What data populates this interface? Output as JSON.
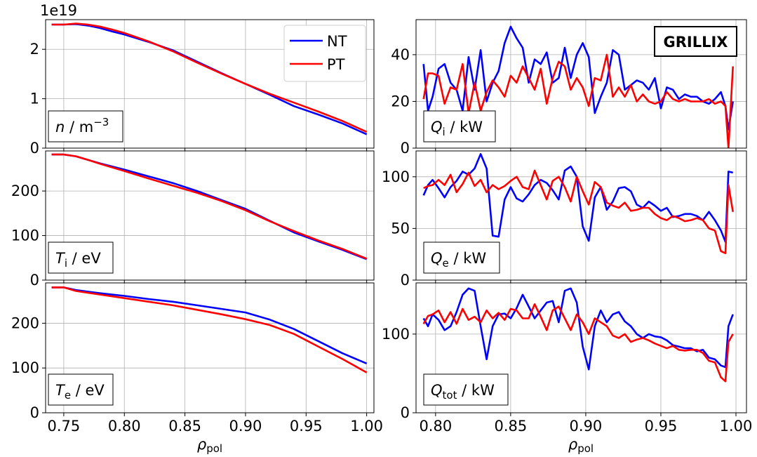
{
  "legend": {
    "entries": [
      {
        "label": "NT",
        "color": "#0000ff"
      },
      {
        "label": "PT",
        "color": "#ff0000"
      }
    ],
    "placement": "upper-right of top-left panel"
  },
  "badge": "GRILLIX",
  "xlabel_left": {
    "main": "ρ",
    "sub": "pol"
  },
  "xlabel_right": {
    "main": "ρ",
    "sub": "pol"
  },
  "chart_data": [
    {
      "type": "line",
      "panel": "n",
      "offset_text": "1e19",
      "label": {
        "var": "n",
        "unit": " / m",
        "sup": "−3"
      },
      "xlim": [
        0.735,
        1.006
      ],
      "ylim": [
        0,
        2.6
      ],
      "xticks": [
        0.75,
        0.8,
        0.85,
        0.9,
        0.95,
        1.0
      ],
      "yticks": [
        0,
        1,
        2
      ],
      "show_xticklabels": false,
      "series": [
        {
          "name": "NT",
          "x": [
            0.74,
            0.75,
            0.76,
            0.77,
            0.78,
            0.79,
            0.8,
            0.82,
            0.84,
            0.86,
            0.88,
            0.9,
            0.92,
            0.94,
            0.96,
            0.98,
            1.0
          ],
          "y": [
            2.5,
            2.5,
            2.51,
            2.48,
            2.43,
            2.36,
            2.3,
            2.15,
            1.98,
            1.75,
            1.52,
            1.3,
            1.08,
            0.85,
            0.68,
            0.5,
            0.28
          ]
        },
        {
          "name": "PT",
          "x": [
            0.74,
            0.75,
            0.76,
            0.77,
            0.78,
            0.79,
            0.8,
            0.82,
            0.84,
            0.86,
            0.88,
            0.9,
            0.92,
            0.94,
            0.96,
            0.98,
            1.0
          ],
          "y": [
            2.5,
            2.5,
            2.52,
            2.5,
            2.46,
            2.4,
            2.33,
            2.16,
            1.96,
            1.73,
            1.51,
            1.3,
            1.1,
            0.92,
            0.74,
            0.55,
            0.33
          ]
        }
      ]
    },
    {
      "type": "line",
      "panel": "Ti",
      "label": {
        "var": "T",
        "sub": "i",
        "unit": " / eV"
      },
      "xlim": [
        0.735,
        1.006
      ],
      "ylim": [
        0,
        290
      ],
      "xticks": [
        0.75,
        0.8,
        0.85,
        0.9,
        0.95,
        1.0
      ],
      "yticks": [
        0,
        100,
        200
      ],
      "show_xticklabels": false,
      "series": [
        {
          "name": "NT",
          "x": [
            0.74,
            0.75,
            0.76,
            0.77,
            0.78,
            0.8,
            0.82,
            0.84,
            0.86,
            0.88,
            0.9,
            0.92,
            0.94,
            0.96,
            0.98,
            1.0
          ],
          "y": [
            282,
            282,
            278,
            270,
            262,
            248,
            233,
            218,
            200,
            180,
            160,
            133,
            107,
            87,
            68,
            47
          ]
        },
        {
          "name": "PT",
          "x": [
            0.74,
            0.75,
            0.76,
            0.77,
            0.78,
            0.8,
            0.82,
            0.84,
            0.86,
            0.88,
            0.9,
            0.92,
            0.94,
            0.96,
            0.98,
            1.0
          ],
          "y": [
            282,
            282,
            278,
            270,
            261,
            245,
            228,
            212,
            196,
            178,
            157,
            132,
            110,
            89,
            70,
            48
          ]
        }
      ]
    },
    {
      "type": "line",
      "panel": "Te",
      "label": {
        "var": "T",
        "sub": "e",
        "unit": " / eV"
      },
      "xlim": [
        0.735,
        1.006
      ],
      "ylim": [
        0,
        290
      ],
      "xticks": [
        0.75,
        0.8,
        0.85,
        0.9,
        0.95,
        1.0
      ],
      "yticks": [
        0,
        100,
        200
      ],
      "show_xticklabels": true,
      "series": [
        {
          "name": "NT",
          "x": [
            0.74,
            0.75,
            0.76,
            0.78,
            0.8,
            0.82,
            0.84,
            0.86,
            0.88,
            0.9,
            0.92,
            0.94,
            0.96,
            0.98,
            1.0
          ],
          "y": [
            280,
            280,
            274,
            267,
            261,
            254,
            248,
            240,
            232,
            224,
            208,
            187,
            160,
            133,
            110
          ]
        },
        {
          "name": "PT",
          "x": [
            0.74,
            0.75,
            0.76,
            0.78,
            0.8,
            0.82,
            0.84,
            0.86,
            0.88,
            0.9,
            0.92,
            0.94,
            0.96,
            0.98,
            1.0
          ],
          "y": [
            280,
            280,
            272,
            264,
            256,
            248,
            240,
            230,
            220,
            209,
            196,
            176,
            148,
            120,
            90
          ]
        }
      ]
    },
    {
      "type": "line",
      "panel": "Qi",
      "label": {
        "var": "Q",
        "sub": "i",
        "unit": " / kW"
      },
      "xlim": [
        0.787,
        1.007
      ],
      "ylim": [
        0,
        55
      ],
      "xticks": [
        0.8,
        0.85,
        0.9,
        0.95,
        1.0
      ],
      "yticks": [
        0,
        20,
        40
      ],
      "show_xticklabels": false,
      "series": [
        {
          "name": "NT",
          "x": [
            0.792,
            0.795,
            0.798,
            0.802,
            0.806,
            0.81,
            0.814,
            0.818,
            0.822,
            0.826,
            0.83,
            0.834,
            0.838,
            0.842,
            0.846,
            0.85,
            0.854,
            0.858,
            0.862,
            0.866,
            0.87,
            0.874,
            0.878,
            0.882,
            0.886,
            0.89,
            0.894,
            0.898,
            0.902,
            0.906,
            0.91,
            0.914,
            0.918,
            0.922,
            0.926,
            0.93,
            0.934,
            0.938,
            0.942,
            0.946,
            0.95,
            0.954,
            0.958,
            0.962,
            0.966,
            0.97,
            0.974,
            0.978,
            0.982,
            0.986,
            0.99,
            0.993,
            0.995,
            0.998
          ],
          "y": [
            36,
            16,
            22,
            34,
            36,
            28,
            25,
            16,
            39,
            25,
            42,
            20,
            28,
            33,
            45,
            52,
            47,
            43,
            28,
            38,
            36,
            41,
            28,
            30,
            43,
            30,
            40,
            45,
            39,
            15,
            22,
            28,
            42,
            40,
            25,
            27,
            29,
            28,
            25,
            30,
            17,
            26,
            25,
            21,
            23,
            22,
            22,
            20,
            19,
            21,
            24,
            18,
            8,
            20
          ]
        },
        {
          "name": "PT",
          "x": [
            0.792,
            0.795,
            0.798,
            0.802,
            0.806,
            0.81,
            0.814,
            0.818,
            0.822,
            0.826,
            0.83,
            0.834,
            0.838,
            0.842,
            0.846,
            0.85,
            0.854,
            0.858,
            0.862,
            0.866,
            0.87,
            0.874,
            0.878,
            0.882,
            0.886,
            0.89,
            0.894,
            0.898,
            0.902,
            0.906,
            0.91,
            0.914,
            0.918,
            0.922,
            0.926,
            0.93,
            0.934,
            0.938,
            0.942,
            0.946,
            0.95,
            0.954,
            0.958,
            0.962,
            0.966,
            0.97,
            0.974,
            0.978,
            0.982,
            0.986,
            0.99,
            0.993,
            0.995,
            0.998
          ],
          "y": [
            21,
            32,
            32,
            31,
            19,
            26,
            25,
            36,
            15,
            28,
            16,
            24,
            29,
            26,
            22,
            31,
            28,
            35,
            30,
            25,
            34,
            19,
            30,
            37,
            35,
            25,
            30,
            26,
            18,
            30,
            29,
            40,
            22,
            26,
            22,
            27,
            20,
            23,
            20,
            19,
            20,
            24,
            21,
            20,
            21,
            20,
            20,
            20,
            21,
            19,
            20,
            18,
            0,
            35
          ]
        }
      ]
    },
    {
      "type": "line",
      "panel": "Qe",
      "label": {
        "var": "Q",
        "sub": "e",
        "unit": " / kW"
      },
      "xlim": [
        0.787,
        1.007
      ],
      "ylim": [
        0,
        125
      ],
      "xticks": [
        0.8,
        0.85,
        0.9,
        0.95,
        1.0
      ],
      "yticks": [
        0,
        50,
        100
      ],
      "show_xticklabels": false,
      "series": [
        {
          "name": "NT",
          "x": [
            0.792,
            0.795,
            0.798,
            0.802,
            0.806,
            0.81,
            0.814,
            0.818,
            0.822,
            0.826,
            0.83,
            0.834,
            0.838,
            0.842,
            0.846,
            0.85,
            0.854,
            0.858,
            0.862,
            0.866,
            0.87,
            0.874,
            0.878,
            0.882,
            0.886,
            0.89,
            0.894,
            0.898,
            0.902,
            0.906,
            0.91,
            0.914,
            0.918,
            0.922,
            0.926,
            0.93,
            0.934,
            0.938,
            0.942,
            0.946,
            0.95,
            0.954,
            0.958,
            0.962,
            0.966,
            0.97,
            0.974,
            0.978,
            0.982,
            0.986,
            0.99,
            0.993,
            0.995,
            0.998
          ],
          "y": [
            82,
            92,
            97,
            89,
            80,
            90,
            96,
            105,
            102,
            108,
            122,
            108,
            43,
            42,
            78,
            90,
            79,
            76,
            83,
            92,
            97,
            94,
            87,
            78,
            106,
            110,
            100,
            52,
            38,
            80,
            90,
            68,
            76,
            89,
            90,
            86,
            73,
            70,
            76,
            72,
            67,
            70,
            61,
            62,
            64,
            64,
            62,
            58,
            66,
            58,
            48,
            37,
            105,
            104
          ]
        },
        {
          "name": "PT",
          "x": [
            0.792,
            0.795,
            0.798,
            0.802,
            0.806,
            0.81,
            0.814,
            0.818,
            0.822,
            0.826,
            0.83,
            0.834,
            0.838,
            0.842,
            0.846,
            0.85,
            0.854,
            0.858,
            0.862,
            0.866,
            0.87,
            0.874,
            0.878,
            0.882,
            0.886,
            0.89,
            0.894,
            0.898,
            0.902,
            0.906,
            0.91,
            0.914,
            0.918,
            0.922,
            0.926,
            0.93,
            0.934,
            0.938,
            0.942,
            0.946,
            0.95,
            0.954,
            0.958,
            0.962,
            0.966,
            0.97,
            0.974,
            0.978,
            0.982,
            0.986,
            0.99,
            0.993,
            0.995,
            0.998
          ],
          "y": [
            89,
            91,
            92,
            97,
            92,
            102,
            85,
            93,
            104,
            91,
            97,
            85,
            92,
            88,
            91,
            96,
            100,
            90,
            88,
            106,
            92,
            78,
            96,
            100,
            90,
            76,
            100,
            86,
            73,
            95,
            90,
            75,
            72,
            70,
            75,
            67,
            68,
            70,
            70,
            64,
            60,
            58,
            62,
            60,
            57,
            58,
            60,
            58,
            50,
            48,
            28,
            26,
            92,
            66
          ]
        }
      ]
    },
    {
      "type": "line",
      "panel": "Qtot",
      "label": {
        "var": "Q",
        "sub": "tot",
        "unit": " / kW"
      },
      "xlim": [
        0.787,
        1.007
      ],
      "ylim": [
        0,
        165
      ],
      "xticks": [
        0.8,
        0.85,
        0.9,
        0.95,
        1.0
      ],
      "yticks": [
        0,
        100
      ],
      "show_xticklabels": true,
      "series": [
        {
          "name": "NT",
          "x": [
            0.792,
            0.795,
            0.798,
            0.802,
            0.806,
            0.81,
            0.814,
            0.818,
            0.822,
            0.826,
            0.83,
            0.834,
            0.838,
            0.842,
            0.846,
            0.85,
            0.854,
            0.858,
            0.862,
            0.866,
            0.87,
            0.874,
            0.878,
            0.882,
            0.886,
            0.89,
            0.894,
            0.898,
            0.902,
            0.906,
            0.91,
            0.914,
            0.918,
            0.922,
            0.926,
            0.93,
            0.934,
            0.938,
            0.942,
            0.946,
            0.95,
            0.954,
            0.958,
            0.962,
            0.966,
            0.97,
            0.974,
            0.978,
            0.982,
            0.986,
            0.99,
            0.993,
            0.995,
            0.998
          ],
          "y": [
            120,
            110,
            125,
            118,
            105,
            110,
            128,
            150,
            158,
            155,
            110,
            68,
            110,
            125,
            126,
            120,
            133,
            150,
            135,
            120,
            130,
            140,
            142,
            115,
            155,
            158,
            140,
            84,
            55,
            110,
            130,
            115,
            125,
            128,
            116,
            110,
            100,
            95,
            100,
            97,
            96,
            92,
            86,
            84,
            82,
            82,
            78,
            80,
            70,
            68,
            60,
            58,
            110,
            125
          ]
        },
        {
          "name": "PT",
          "x": [
            0.792,
            0.795,
            0.798,
            0.802,
            0.806,
            0.81,
            0.814,
            0.818,
            0.822,
            0.826,
            0.83,
            0.834,
            0.838,
            0.842,
            0.846,
            0.85,
            0.854,
            0.858,
            0.862,
            0.866,
            0.87,
            0.874,
            0.878,
            0.882,
            0.886,
            0.89,
            0.894,
            0.898,
            0.902,
            0.906,
            0.91,
            0.914,
            0.918,
            0.922,
            0.926,
            0.93,
            0.934,
            0.938,
            0.942,
            0.946,
            0.95,
            0.954,
            0.958,
            0.962,
            0.966,
            0.97,
            0.974,
            0.978,
            0.982,
            0.986,
            0.99,
            0.993,
            0.995,
            0.998
          ],
          "y": [
            113,
            123,
            125,
            130,
            115,
            128,
            113,
            132,
            118,
            122,
            115,
            130,
            120,
            127,
            118,
            132,
            130,
            120,
            120,
            138,
            122,
            105,
            130,
            135,
            120,
            105,
            125,
            115,
            100,
            120,
            115,
            110,
            98,
            95,
            100,
            90,
            93,
            95,
            92,
            88,
            85,
            82,
            85,
            80,
            79,
            80,
            80,
            76,
            66,
            64,
            45,
            40,
            90,
            100
          ]
        }
      ]
    }
  ]
}
